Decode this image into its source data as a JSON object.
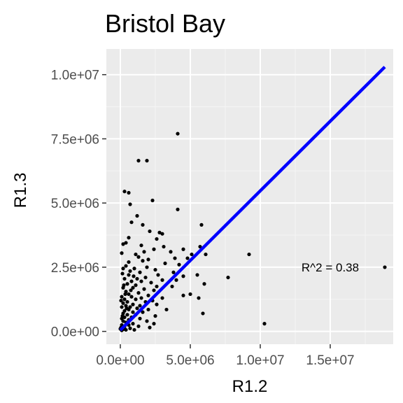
{
  "chart_data": {
    "type": "scatter",
    "title": "Bristol Bay",
    "xlabel": "R1.2",
    "ylabel": "R1.3",
    "xlim": [
      -1000000,
      19500000
    ],
    "ylim": [
      -500000,
      11000000
    ],
    "x_ticks": [
      0,
      5000000,
      10000000,
      15000000
    ],
    "x_tick_labels": [
      "0.0e+00",
      "5.0e+06",
      "1.0e+07",
      "1.5e+07"
    ],
    "y_ticks": [
      0,
      2500000,
      5000000,
      7500000,
      10000000
    ],
    "y_tick_labels": [
      "0.0e+00",
      "2.5e+06",
      "5.0e+06",
      "7.5e+06",
      "1.0e+07"
    ],
    "grid": true,
    "panel_background": "#ebebeb",
    "point_color": "#000000",
    "fit_line": {
      "color": "#0000ff",
      "x": [
        0,
        18900000
      ],
      "y": [
        50000,
        10300000
      ]
    },
    "annotation": {
      "text": "R^2 = 0.38",
      "x": 15000000,
      "y": 2500000
    },
    "points": [
      [
        4100000,
        7700000
      ],
      [
        1300000,
        6650000
      ],
      [
        1900000,
        6650000
      ],
      [
        300000,
        5450000
      ],
      [
        600000,
        5400000
      ],
      [
        2300000,
        5100000
      ],
      [
        700000,
        4950000
      ],
      [
        4100000,
        4750000
      ],
      [
        1200000,
        4500000
      ],
      [
        800000,
        4250000
      ],
      [
        1600000,
        4150000
      ],
      [
        5800000,
        4150000
      ],
      [
        2100000,
        3900000
      ],
      [
        2800000,
        3850000
      ],
      [
        3000000,
        3800000
      ],
      [
        600000,
        3650000
      ],
      [
        2600000,
        3600000
      ],
      [
        400000,
        3450000
      ],
      [
        200000,
        3400000
      ],
      [
        5700000,
        3300000
      ],
      [
        4500000,
        3200000
      ],
      [
        1500000,
        3350000
      ],
      [
        3100000,
        3300000
      ],
      [
        2400000,
        3200000
      ],
      [
        1700000,
        3100000
      ],
      [
        3600000,
        3100000
      ],
      [
        5100000,
        3000000
      ],
      [
        6100000,
        3000000
      ],
      [
        9200000,
        3000000
      ],
      [
        100000,
        3050000
      ],
      [
        1100000,
        3000000
      ],
      [
        4800000,
        2850000
      ],
      [
        3900000,
        2850000
      ],
      [
        2000000,
        2800000
      ],
      [
        1300000,
        2900000
      ],
      [
        1600000,
        2750000
      ],
      [
        3200000,
        2650000
      ],
      [
        600000,
        2700000
      ],
      [
        4200000,
        2600000
      ],
      [
        400000,
        2550000
      ],
      [
        1900000,
        2500000
      ],
      [
        1000000,
        2450000
      ],
      [
        200000,
        2450000
      ],
      [
        2500000,
        2400000
      ],
      [
        700000,
        2350000
      ],
      [
        1400000,
        2300000
      ],
      [
        3800000,
        2300000
      ],
      [
        5500000,
        2200000
      ],
      [
        600000,
        2200000
      ],
      [
        2700000,
        2200000
      ],
      [
        4500000,
        2150000
      ],
      [
        7700000,
        2100000
      ],
      [
        1800000,
        2100000
      ],
      [
        1200000,
        2050000
      ],
      [
        300000,
        2050000
      ],
      [
        3000000,
        2000000
      ],
      [
        4000000,
        2000000
      ],
      [
        800000,
        1950000
      ],
      [
        1500000,
        1950000
      ],
      [
        2200000,
        1900000
      ],
      [
        6000000,
        1850000
      ],
      [
        500000,
        1850000
      ],
      [
        1100000,
        1800000
      ],
      [
        2600000,
        1750000
      ],
      [
        3700000,
        1750000
      ],
      [
        200000,
        1700000
      ],
      [
        900000,
        1700000
      ],
      [
        1700000,
        1650000
      ],
      [
        2400000,
        1600000
      ],
      [
        400000,
        1550000
      ],
      [
        1300000,
        1500000
      ],
      [
        5000000,
        1450000
      ],
      [
        600000,
        1450000
      ],
      [
        2000000,
        1400000
      ],
      [
        4500000,
        1400000
      ],
      [
        100000,
        1350000
      ],
      [
        800000,
        1350000
      ],
      [
        1500000,
        1300000
      ],
      [
        3000000,
        1300000
      ],
      [
        300000,
        1250000
      ],
      [
        1100000,
        1250000
      ],
      [
        2300000,
        1200000
      ],
      [
        5600000,
        1300000
      ],
      [
        500000,
        1150000
      ],
      [
        1800000,
        1150000
      ],
      [
        200000,
        1100000
      ],
      [
        900000,
        1050000
      ],
      [
        2600000,
        1050000
      ],
      [
        400000,
        1000000
      ],
      [
        1400000,
        1000000
      ],
      [
        700000,
        950000
      ],
      [
        100000,
        950000
      ],
      [
        3300000,
        850000
      ],
      [
        1200000,
        900000
      ],
      [
        600000,
        850000
      ],
      [
        2000000,
        850000
      ],
      [
        300000,
        800000
      ],
      [
        5900000,
        700000
      ],
      [
        900000,
        750000
      ],
      [
        1600000,
        750000
      ],
      [
        200000,
        700000
      ],
      [
        500000,
        650000
      ],
      [
        1100000,
        650000
      ],
      [
        2500000,
        600000
      ],
      [
        300000,
        550000
      ],
      [
        800000,
        550000
      ],
      [
        100000,
        500000
      ],
      [
        1400000,
        500000
      ],
      [
        600000,
        450000
      ],
      [
        200000,
        400000
      ],
      [
        1900000,
        400000
      ],
      [
        400000,
        350000
      ],
      [
        900000,
        300000
      ],
      [
        10300000,
        300000
      ],
      [
        2400000,
        300000
      ],
      [
        100000,
        250000
      ],
      [
        600000,
        250000
      ],
      [
        1300000,
        200000
      ],
      [
        300000,
        180000
      ],
      [
        2100000,
        150000
      ],
      [
        50000,
        150000
      ],
      [
        700000,
        120000
      ],
      [
        200000,
        80000
      ],
      [
        400000,
        60000
      ],
      [
        100000,
        40000
      ],
      [
        1000000,
        60000
      ],
      [
        0,
        100000
      ],
      [
        250000,
        1800000
      ],
      [
        150000,
        2250000
      ],
      [
        350000,
        1450000
      ],
      [
        50000,
        1200000
      ],
      [
        450000,
        900000
      ],
      [
        150000,
        600000
      ],
      [
        750000,
        1600000
      ],
      [
        950000,
        2150000
      ],
      [
        18900000,
        2500000
      ]
    ]
  }
}
